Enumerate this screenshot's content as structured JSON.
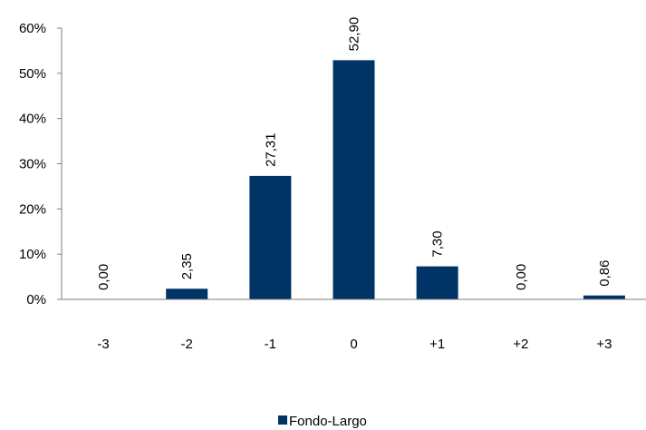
{
  "chart_data": {
    "type": "bar",
    "title": "",
    "xlabel": "",
    "ylabel": "",
    "categories": [
      "-3",
      "-2",
      "-1",
      "0",
      "+1",
      "+2",
      "+3"
    ],
    "series": [
      {
        "name": "Fondo-Largo",
        "values": [
          0.0,
          2.35,
          27.31,
          52.9,
          7.3,
          0.0,
          0.86
        ],
        "labels": [
          "0,00",
          "2,35",
          "27,31",
          "52,90",
          "7,30",
          "0,00",
          "0,86"
        ],
        "color": "#003366"
      }
    ],
    "ylim": [
      0,
      60
    ],
    "yticks": [
      0,
      10,
      20,
      30,
      40,
      50,
      60
    ],
    "ytick_labels": [
      "0%",
      "10%",
      "20%",
      "30%",
      "40%",
      "50%",
      "60%"
    ],
    "grid": false,
    "legend_position": "bottom-center"
  }
}
